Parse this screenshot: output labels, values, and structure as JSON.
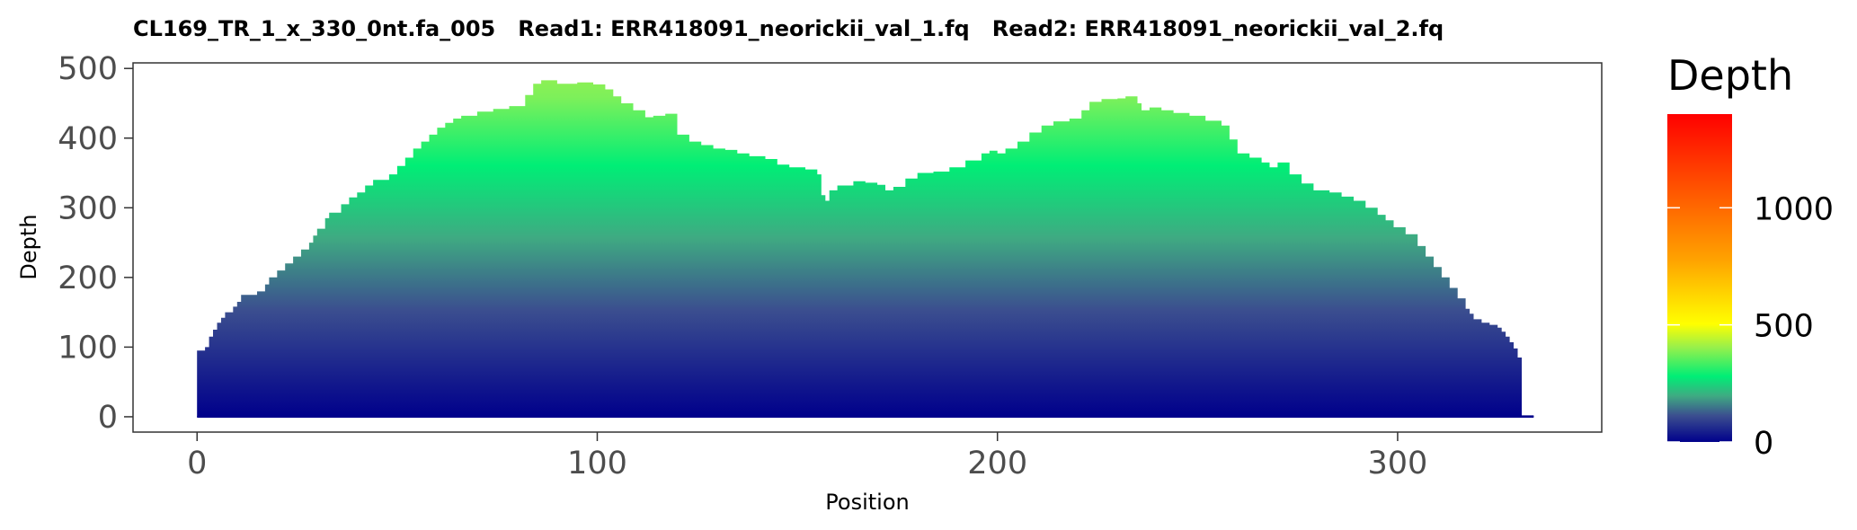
{
  "chart_data": {
    "type": "area",
    "title": "CL169_TR_1_x_330_0nt.fa_005   Read1: ERR418091_neorickii_val_1.fq   Read2: ERR418091_neorickii_val_2.fq",
    "xlabel": "Position",
    "ylabel": "Depth",
    "xlim": [
      -16,
      351
    ],
    "ylim": [
      -22,
      508
    ],
    "x_ticks": [
      0,
      100,
      200,
      300
    ],
    "y_ticks": [
      0,
      100,
      200,
      300,
      400,
      500
    ],
    "grid": false,
    "legend": {
      "title": "Depth",
      "placement": "right",
      "range": [
        0,
        1400
      ],
      "ticks": [
        0,
        500,
        1000
      ],
      "colors": [
        "#00008B",
        "#00EE76",
        "#FFFF00",
        "#FF0000"
      ]
    },
    "points": [
      [
        0,
        95
      ],
      [
        2,
        100
      ],
      [
        3,
        115
      ],
      [
        4,
        125
      ],
      [
        5,
        135
      ],
      [
        6,
        142
      ],
      [
        7,
        150
      ],
      [
        9,
        158
      ],
      [
        10,
        165
      ],
      [
        11,
        175
      ],
      [
        15,
        180
      ],
      [
        17,
        190
      ],
      [
        18,
        200
      ],
      [
        20,
        210
      ],
      [
        22,
        220
      ],
      [
        24,
        230
      ],
      [
        26,
        240
      ],
      [
        28,
        250
      ],
      [
        29,
        260
      ],
      [
        30,
        270
      ],
      [
        32,
        285
      ],
      [
        33,
        293
      ],
      [
        36,
        305
      ],
      [
        38,
        315
      ],
      [
        40,
        322
      ],
      [
        42,
        332
      ],
      [
        44,
        340
      ],
      [
        48,
        348
      ],
      [
        50,
        360
      ],
      [
        52,
        372
      ],
      [
        54,
        385
      ],
      [
        56,
        395
      ],
      [
        58,
        405
      ],
      [
        60,
        415
      ],
      [
        62,
        422
      ],
      [
        64,
        428
      ],
      [
        66,
        432
      ],
      [
        70,
        438
      ],
      [
        74,
        442
      ],
      [
        78,
        446
      ],
      [
        82,
        462
      ],
      [
        84,
        478
      ],
      [
        86,
        483
      ],
      [
        90,
        478
      ],
      [
        95,
        480
      ],
      [
        99,
        477
      ],
      [
        102,
        470
      ],
      [
        104,
        460
      ],
      [
        106,
        450
      ],
      [
        109,
        440
      ],
      [
        112,
        430
      ],
      [
        114,
        432
      ],
      [
        117,
        435
      ],
      [
        120,
        405
      ],
      [
        123,
        395
      ],
      [
        126,
        390
      ],
      [
        129,
        385
      ],
      [
        132,
        383
      ],
      [
        135,
        378
      ],
      [
        138,
        374
      ],
      [
        142,
        370
      ],
      [
        145,
        362
      ],
      [
        148,
        358
      ],
      [
        152,
        355
      ],
      [
        155,
        348
      ],
      [
        156,
        318
      ],
      [
        157,
        310
      ],
      [
        158,
        325
      ],
      [
        160,
        332
      ],
      [
        164,
        338
      ],
      [
        167,
        336
      ],
      [
        170,
        333
      ],
      [
        172,
        325
      ],
      [
        174,
        330
      ],
      [
        177,
        342
      ],
      [
        180,
        350
      ],
      [
        184,
        352
      ],
      [
        188,
        358
      ],
      [
        192,
        368
      ],
      [
        196,
        378
      ],
      [
        198,
        382
      ],
      [
        200,
        378
      ],
      [
        202,
        385
      ],
      [
        205,
        395
      ],
      [
        208,
        408
      ],
      [
        211,
        418
      ],
      [
        214,
        424
      ],
      [
        218,
        428
      ],
      [
        221,
        440
      ],
      [
        223,
        452
      ],
      [
        226,
        456
      ],
      [
        230,
        457
      ],
      [
        232,
        460
      ],
      [
        235,
        450
      ],
      [
        236,
        440
      ],
      [
        238,
        444
      ],
      [
        241,
        440
      ],
      [
        244,
        436
      ],
      [
        248,
        432
      ],
      [
        252,
        425
      ],
      [
        256,
        418
      ],
      [
        258,
        398
      ],
      [
        260,
        378
      ],
      [
        263,
        372
      ],
      [
        266,
        365
      ],
      [
        268,
        358
      ],
      [
        270,
        365
      ],
      [
        273,
        348
      ],
      [
        276,
        335
      ],
      [
        279,
        325
      ],
      [
        283,
        322
      ],
      [
        286,
        316
      ],
      [
        289,
        310
      ],
      [
        292,
        300
      ],
      [
        295,
        290
      ],
      [
        297,
        282
      ],
      [
        299,
        272
      ],
      [
        302,
        262
      ],
      [
        305,
        245
      ],
      [
        307,
        230
      ],
      [
        309,
        215
      ],
      [
        311,
        200
      ],
      [
        313,
        185
      ],
      [
        315,
        170
      ],
      [
        317,
        155
      ],
      [
        318,
        148
      ],
      [
        319,
        140
      ],
      [
        321,
        135
      ],
      [
        323,
        132
      ],
      [
        325,
        128
      ],
      [
        326,
        122
      ],
      [
        327,
        115
      ],
      [
        328,
        107
      ],
      [
        329,
        98
      ],
      [
        330,
        85
      ],
      [
        331,
        2
      ],
      [
        334,
        2
      ]
    ]
  }
}
